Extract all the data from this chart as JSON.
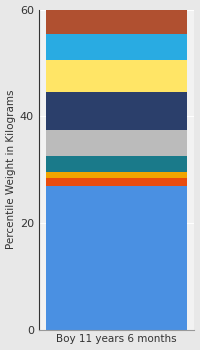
{
  "categories": [
    "Boy 11 years 6 months"
  ],
  "segments": [
    {
      "label": "base_blue",
      "value": 27.0,
      "color": "#4A90E2"
    },
    {
      "label": "orange",
      "value": 1.5,
      "color": "#E84C0E"
    },
    {
      "label": "yellow_orange",
      "value": 1.0,
      "color": "#F0A500"
    },
    {
      "label": "teal",
      "value": 3.0,
      "color": "#1A7A8A"
    },
    {
      "label": "gray",
      "value": 5.0,
      "color": "#BBBBBB"
    },
    {
      "label": "navy",
      "value": 7.0,
      "color": "#2B3F6B"
    },
    {
      "label": "yellow",
      "value": 6.0,
      "color": "#FFE566"
    },
    {
      "label": "light_blue",
      "value": 5.0,
      "color": "#29ABE2"
    },
    {
      "label": "brown",
      "value": 4.5,
      "color": "#B05030"
    }
  ],
  "ylabel": "Percentile Weight in Kilograms",
  "ylim": [
    0,
    60
  ],
  "yticks": [
    0,
    20,
    40,
    60
  ],
  "background_color": "#E8E8E8",
  "plot_bg_color": "#F2F2F2",
  "bar_width": 0.4,
  "ylabel_fontsize": 7.5,
  "tick_fontsize": 8,
  "xlabel_fontsize": 7.5
}
